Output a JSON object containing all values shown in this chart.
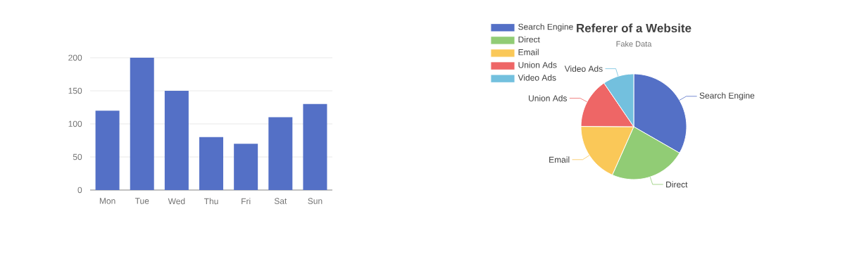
{
  "chart_data": [
    {
      "type": "bar",
      "categories": [
        "Mon",
        "Tue",
        "Wed",
        "Thu",
        "Fri",
        "Sat",
        "Sun"
      ],
      "values": [
        120,
        200,
        150,
        80,
        70,
        110,
        130
      ],
      "color": "#5470c6",
      "ylim": [
        0,
        200
      ],
      "yticks": [
        0,
        50,
        100,
        150,
        200
      ],
      "grid": "y"
    },
    {
      "type": "pie",
      "title": "Referer of a Website",
      "subtitle": "Fake Data",
      "categories": [
        "Search Engine",
        "Direct",
        "Email",
        "Union Ads",
        "Video Ads"
      ],
      "values": [
        33.3,
        23.36,
        18.43,
        15.38,
        9.53
      ],
      "colors": [
        "#5470c6",
        "#91cc75",
        "#fac858",
        "#ee6666",
        "#73c0de"
      ],
      "legend": "top left"
    }
  ]
}
